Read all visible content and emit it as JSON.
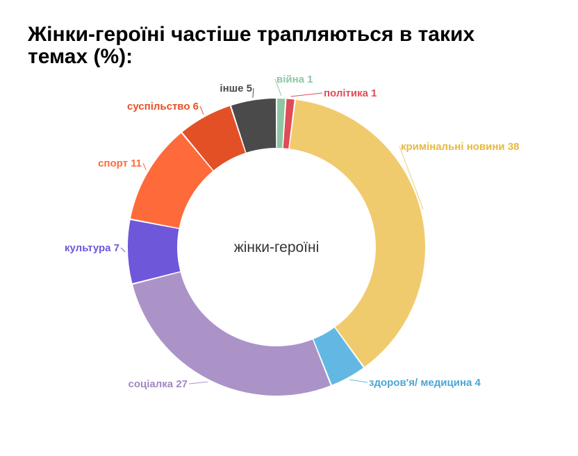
{
  "chart_data": {
    "type": "pie",
    "title": "Жінки-героїні частіше трапляються в таких темах (%):",
    "center_label": "жінки-героїні",
    "categories": [
      "війна",
      "політика",
      "кримінальні новини",
      "здоров'я/ медицина",
      "соціалка",
      "культура",
      "спорт",
      "суспільство",
      "інше"
    ],
    "values": [
      1,
      1,
      38,
      4,
      27,
      7,
      11,
      6,
      5
    ],
    "labels": [
      "війна 1",
      "політика 1",
      "кримінальні новини 38",
      "здоров'я/ медицина 4",
      "соціалка 27",
      "культура 7",
      "спорт 11",
      "суспільство 6",
      "інше 5"
    ],
    "colors": [
      "#8ec6a4",
      "#df4b57",
      "#f0cb6e",
      "#63b8e3",
      "#ab93c8",
      "#6e57d9",
      "#ff6a3a",
      "#e45025",
      "#4a4a4a"
    ]
  }
}
